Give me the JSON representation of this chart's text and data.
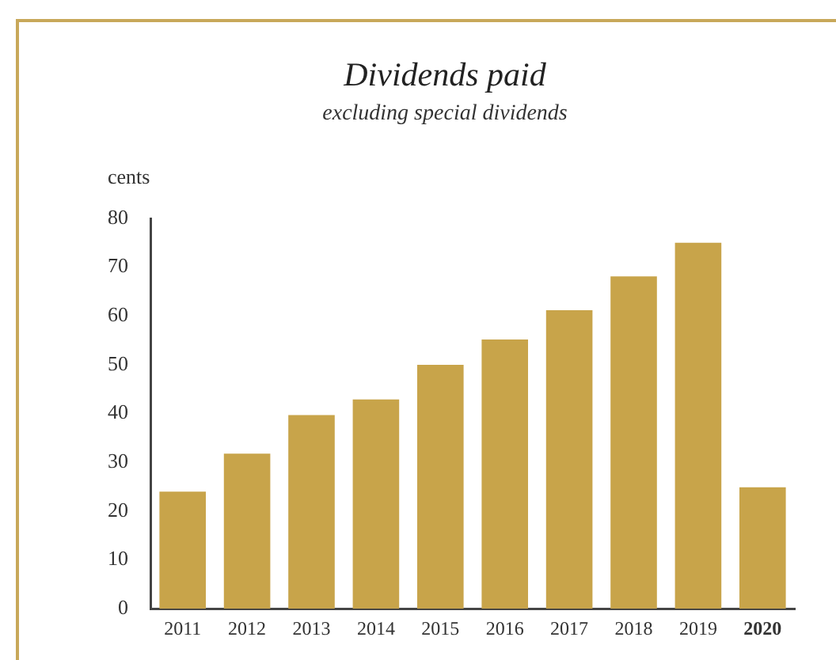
{
  "chart_data": {
    "type": "bar",
    "title": "Dividends paid",
    "subtitle": "excluding special dividends",
    "ylabel": "cents",
    "categories": [
      "2011",
      "2012",
      "2013",
      "2014",
      "2015",
      "2016",
      "2017",
      "2018",
      "2019",
      "2020"
    ],
    "values": [
      24,
      31.8,
      39.7,
      42.9,
      50,
      55.2,
      61.2,
      68.1,
      75,
      24.9
    ],
    "color": "#c8a44a",
    "ylim": [
      0,
      80
    ],
    "yticks": [
      0,
      10,
      20,
      30,
      40,
      50,
      60,
      70,
      80
    ],
    "grid": false,
    "legend": false
  }
}
